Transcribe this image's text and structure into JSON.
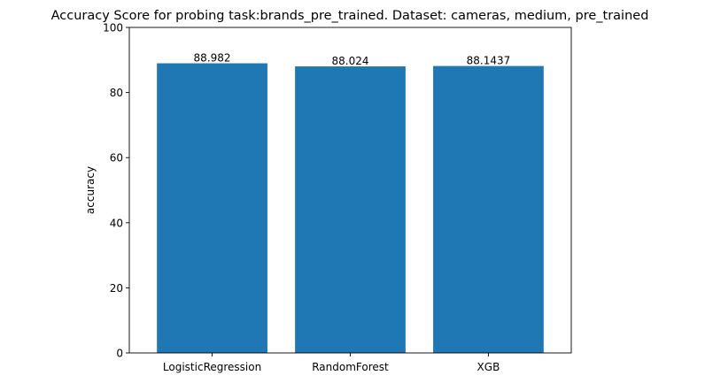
{
  "chart_data": {
    "type": "bar",
    "title": "Accuracy Score for probing task:brands_pre_trained. Dataset: cameras, medium, pre_trained",
    "xlabel": "",
    "ylabel": "accuracy",
    "categories": [
      "LogisticRegression",
      "RandomForest",
      "XGB"
    ],
    "values": [
      88.982,
      88.024,
      88.1437
    ],
    "value_labels": [
      "88.982",
      "88.024",
      "88.1437"
    ],
    "ylim": [
      0,
      100
    ],
    "yticks": [
      0,
      20,
      40,
      60,
      80,
      100
    ],
    "ytick_labels": [
      "0",
      "20",
      "40",
      "60",
      "80",
      "100"
    ],
    "grid": false,
    "legend": "none",
    "bar_color": "#1f77b4"
  }
}
